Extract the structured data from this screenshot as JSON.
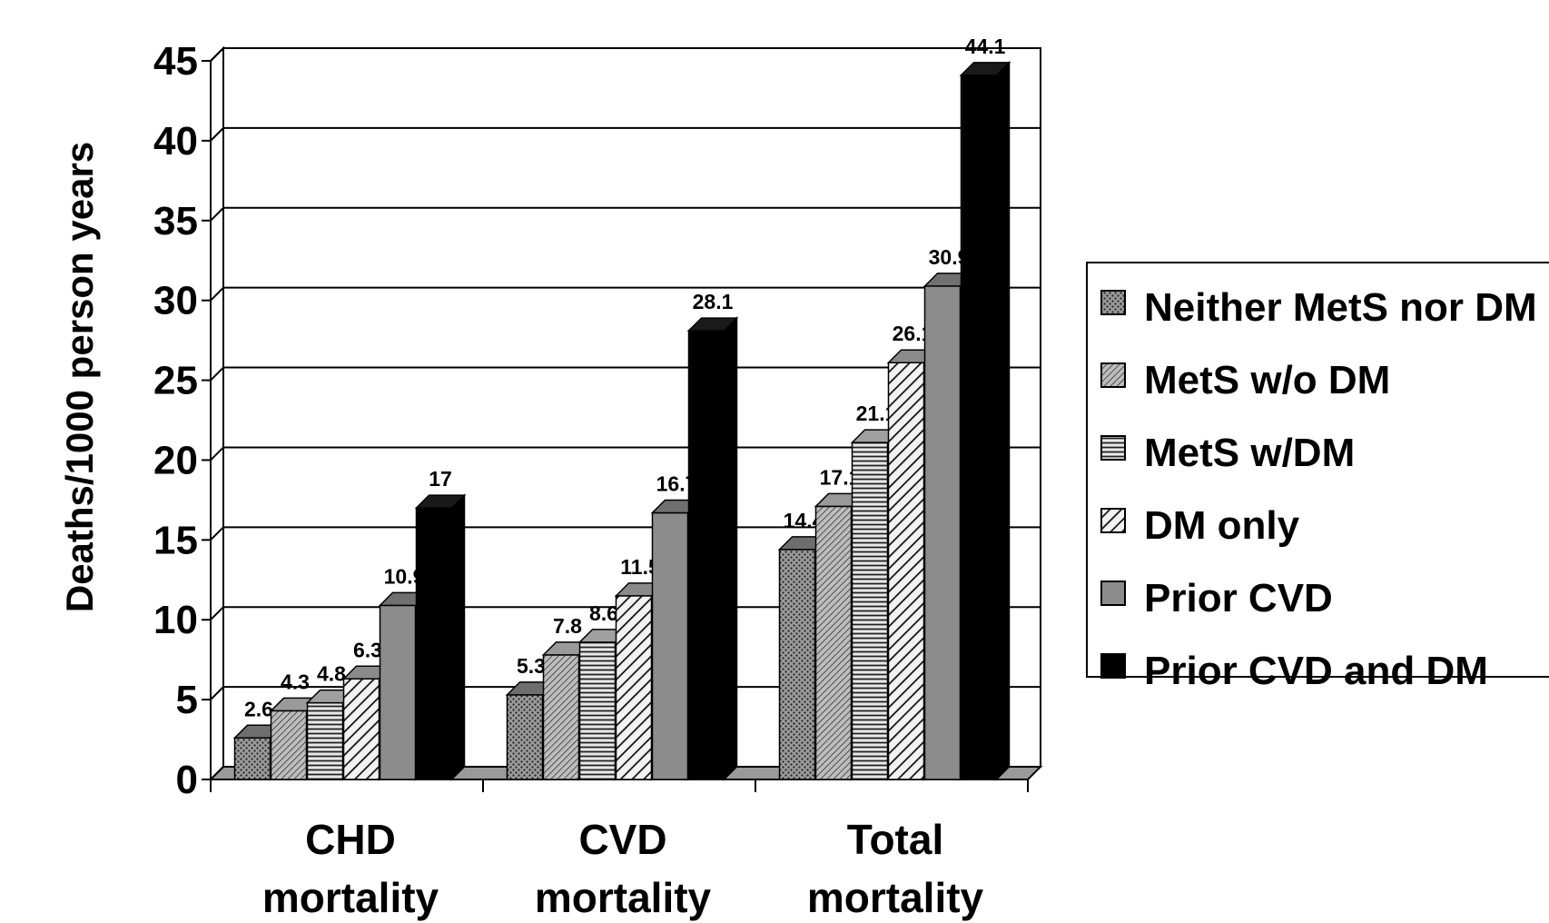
{
  "chart_data": {
    "type": "bar",
    "title": "",
    "xlabel": "",
    "ylabel": "Deaths/1000 person years",
    "ylim": [
      0,
      45
    ],
    "yticks": [
      0,
      5,
      10,
      15,
      20,
      25,
      30,
      35,
      40,
      45
    ],
    "grid": true,
    "legend_position": "right",
    "categories": [
      [
        "CHD",
        "mortality"
      ],
      [
        "CVD",
        "mortality"
      ],
      [
        "Total",
        "mortality"
      ]
    ],
    "series": [
      {
        "name": "Neither MetS nor DM",
        "values": [
          2.6,
          5.3,
          14.4
        ],
        "pattern": "dots"
      },
      {
        "name": "MetS w/o DM",
        "values": [
          4.3,
          7.8,
          17.1
        ],
        "pattern": "diagonal-fine"
      },
      {
        "name": "MetS w/DM",
        "values": [
          4.8,
          8.6,
          21.1
        ],
        "pattern": "horizontal"
      },
      {
        "name": "DM only",
        "values": [
          6.3,
          11.5,
          26.1
        ],
        "pattern": "diagonal-wide"
      },
      {
        "name": "Prior CVD",
        "values": [
          10.9,
          16.7,
          30.9
        ],
        "pattern": "solid-gray"
      },
      {
        "name": "Prior CVD and DM",
        "values": [
          17,
          28.1,
          44.1
        ],
        "pattern": "solid-black"
      }
    ]
  }
}
